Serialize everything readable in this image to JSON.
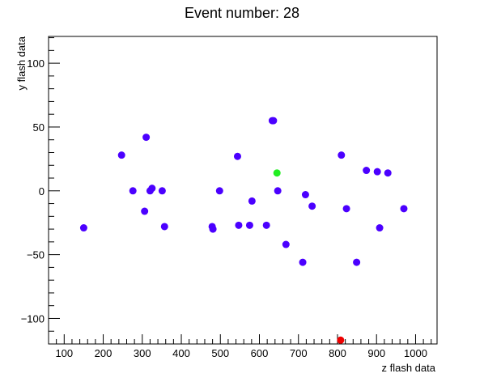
{
  "chart_data": {
    "type": "scatter",
    "title": "Event number: 28",
    "xlabel": "z flash data",
    "ylabel": "y flash data",
    "xlim": [
      60,
      1055
    ],
    "ylim": [
      -120,
      121
    ],
    "grid": false,
    "x_ticks": [
      100,
      200,
      300,
      400,
      500,
      600,
      700,
      800,
      900,
      1000
    ],
    "y_ticks": [
      -100,
      -50,
      0,
      50,
      100
    ],
    "y_tick_labels": [
      "−100",
      "−50",
      "0",
      "50",
      "100"
    ],
    "series": [
      {
        "color": "#4b00ff",
        "points": [
          {
            "x": 150,
            "y": -29
          },
          {
            "x": 247,
            "y": 28
          },
          {
            "x": 276,
            "y": 0
          },
          {
            "x": 306,
            "y": -16
          },
          {
            "x": 310,
            "y": 42
          },
          {
            "x": 320,
            "y": 0
          },
          {
            "x": 325,
            "y": 2
          },
          {
            "x": 351,
            "y": 0
          },
          {
            "x": 357,
            "y": -28
          },
          {
            "x": 479,
            "y": -28
          },
          {
            "x": 481,
            "y": -30
          },
          {
            "x": 498,
            "y": 0
          },
          {
            "x": 544,
            "y": 27
          },
          {
            "x": 547,
            "y": -27
          },
          {
            "x": 575,
            "y": -27
          },
          {
            "x": 581,
            "y": -8
          },
          {
            "x": 618,
            "y": -27
          },
          {
            "x": 633,
            "y": 55
          },
          {
            "x": 636,
            "y": 55
          },
          {
            "x": 647,
            "y": 0
          },
          {
            "x": 668,
            "y": -42
          },
          {
            "x": 711,
            "y": -56
          },
          {
            "x": 718,
            "y": -3
          },
          {
            "x": 735,
            "y": -12
          },
          {
            "x": 810,
            "y": 28
          },
          {
            "x": 823,
            "y": -14
          },
          {
            "x": 849,
            "y": -56
          },
          {
            "x": 874,
            "y": 16
          },
          {
            "x": 902,
            "y": 15
          },
          {
            "x": 908,
            "y": -29
          },
          {
            "x": 929,
            "y": 14
          },
          {
            "x": 970,
            "y": -14
          }
        ]
      },
      {
        "color": "#22ee22",
        "points": [
          {
            "x": 645,
            "y": 14
          }
        ]
      },
      {
        "color": "#ee0000",
        "points": [
          {
            "x": 808,
            "y": -117
          }
        ]
      }
    ]
  }
}
